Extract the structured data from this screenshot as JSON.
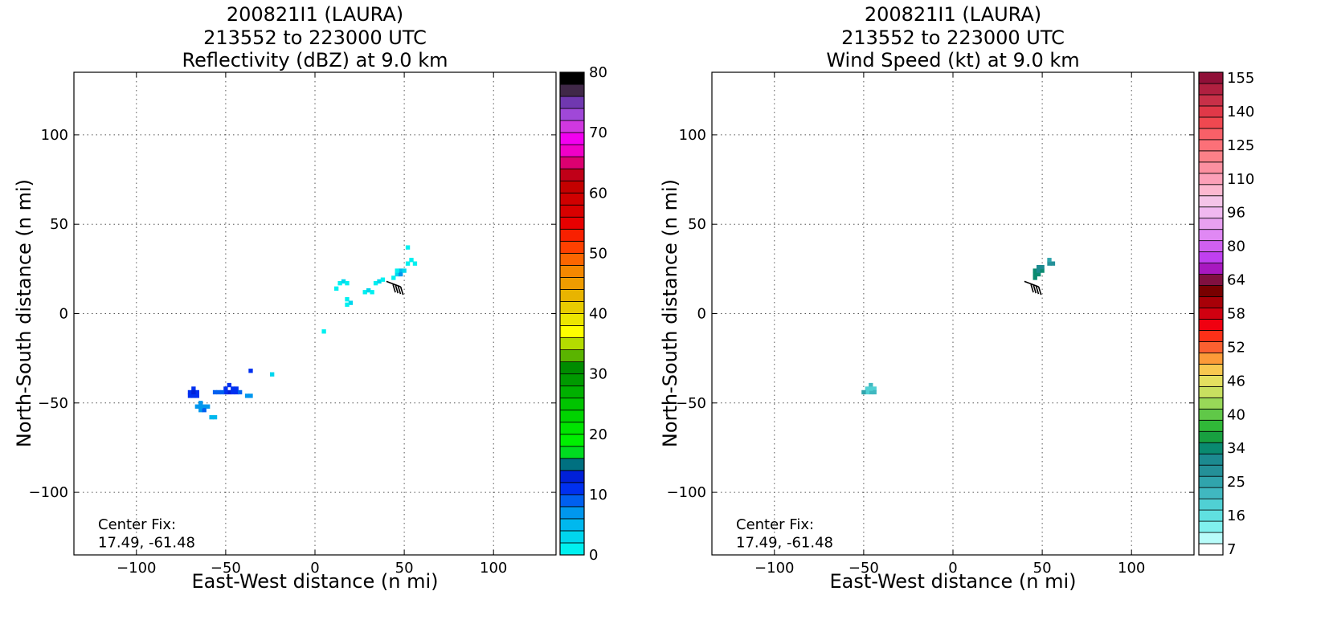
{
  "chart_data": [
    {
      "type": "heatmap",
      "title_lines": [
        "200821I1 (LAURA)",
        "213552 to 223000 UTC",
        "Reflectivity (dBZ) at 9.0 km"
      ],
      "xlabel": "East-West distance (n mi)",
      "ylabel": "North-South distance (n mi)",
      "xlim": [
        -135,
        135
      ],
      "ylim": [
        -135,
        135
      ],
      "xticks": [
        -100,
        -50,
        0,
        50,
        100
      ],
      "yticks": [
        -100,
        -50,
        0,
        50,
        100
      ],
      "xtick_labels": [
        "−100",
        "−50",
        "0",
        "50",
        "100"
      ],
      "ytick_labels": [
        "−100",
        "−50",
        "0",
        "50",
        "100"
      ],
      "grid": true,
      "annotation": {
        "line1": "Center Fix:",
        "line2": "17.49, -61.48"
      },
      "colorbar": {
        "min": 0,
        "max": 80,
        "step": 2.5,
        "ticks": [
          0,
          10,
          20,
          30,
          40,
          50,
          60,
          70,
          80
        ],
        "tick_labels": [
          "0",
          "10",
          "20",
          "30",
          "40",
          "50",
          "60",
          "70",
          "80"
        ],
        "colors": [
          "#00f0f0",
          "#00d6ee",
          "#00b8ee",
          "#0097ee",
          "#0060f0",
          "#0030f0",
          "#0020d8",
          "#007080",
          "#00dc20",
          "#00f000",
          "#00e400",
          "#00d400",
          "#00c400",
          "#00b000",
          "#009a00",
          "#008c00",
          "#5ab400",
          "#b4dc00",
          "#ffff00",
          "#ece600",
          "#e8cc00",
          "#e8b400",
          "#ef9c00",
          "#f48800",
          "#fc6600",
          "#ff4000",
          "#f82000",
          "#e80000",
          "#d80000",
          "#d00000",
          "#c40000",
          "#c00018",
          "#dc0070",
          "#f000c8",
          "#f200f0",
          "#d038e0",
          "#a048d8",
          "#7038b0",
          "#402848",
          "#000000"
        ]
      },
      "points": [
        [
          -68,
          -42
        ],
        [
          -70,
          -44
        ],
        [
          -68,
          -46
        ],
        [
          -66,
          -44
        ],
        [
          -66,
          -46
        ],
        [
          -70,
          -46
        ],
        [
          -68,
          -44
        ],
        [
          -64,
          -50
        ],
        [
          -62,
          -52
        ],
        [
          -64,
          -54
        ],
        [
          -62,
          -54
        ],
        [
          -66,
          -52
        ],
        [
          -60,
          -52
        ],
        [
          -64,
          -52
        ],
        [
          -50,
          -42
        ],
        [
          -48,
          -40
        ],
        [
          -46,
          -42
        ],
        [
          -44,
          -44
        ],
        [
          -48,
          -44
        ],
        [
          -46,
          -44
        ],
        [
          -50,
          -44
        ],
        [
          -52,
          -44
        ],
        [
          -44,
          -42
        ],
        [
          -42,
          -44
        ],
        [
          -54,
          -44
        ],
        [
          -56,
          -44
        ],
        [
          -36,
          -32
        ],
        [
          -38,
          -46
        ],
        [
          -36,
          -46
        ],
        [
          -58,
          -58
        ],
        [
          -56,
          -58
        ],
        [
          -24,
          -34
        ],
        [
          5,
          -10
        ],
        [
          12,
          14
        ],
        [
          14,
          17
        ],
        [
          16,
          18
        ],
        [
          18,
          17
        ],
        [
          18,
          8
        ],
        [
          20,
          6
        ],
        [
          18,
          5
        ],
        [
          28,
          12
        ],
        [
          30,
          13
        ],
        [
          32,
          12
        ],
        [
          34,
          17
        ],
        [
          36,
          18
        ],
        [
          38,
          19
        ],
        [
          44,
          20
        ],
        [
          46,
          22
        ],
        [
          48,
          24
        ],
        [
          48,
          22
        ],
        [
          50,
          24
        ],
        [
          46,
          24
        ],
        [
          52,
          28
        ],
        [
          54,
          30
        ],
        [
          56,
          28
        ],
        [
          52,
          37
        ]
      ],
      "point_levels": [
        5,
        5,
        5,
        5,
        5,
        5,
        6,
        3,
        3,
        3,
        4,
        3,
        3,
        3,
        5,
        5,
        5,
        5,
        6,
        5,
        5,
        4,
        5,
        4,
        4,
        4,
        5,
        3,
        3,
        2,
        2,
        1,
        0,
        0,
        0,
        1,
        0,
        0,
        1,
        0,
        0,
        1,
        0,
        0,
        1,
        0,
        0,
        1,
        2,
        3,
        1,
        0,
        0,
        0,
        0,
        0
      ]
    },
    {
      "type": "heatmap",
      "title_lines": [
        "200821I1 (LAURA)",
        "213552 to 223000 UTC",
        "Wind Speed (kt) at 9.0 km"
      ],
      "xlabel": "East-West distance (n mi)",
      "ylabel": "North-South distance (n mi)",
      "xlim": [
        -135,
        135
      ],
      "ylim": [
        -135,
        135
      ],
      "xticks": [
        -100,
        -50,
        0,
        50,
        100
      ],
      "yticks": [
        -100,
        -50,
        0,
        50,
        100
      ],
      "xtick_labels": [
        "−100",
        "−50",
        "0",
        "50",
        "100"
      ],
      "ytick_labels": [
        "−100",
        "−50",
        "0",
        "50",
        "100"
      ],
      "grid": true,
      "annotation": {
        "line1": "Center Fix:",
        "line2": "17.49, -61.48"
      },
      "colorbar": {
        "levels": 43,
        "tick_labels": [
          "7",
          "16",
          "25",
          "34",
          "40",
          "46",
          "52",
          "58",
          "64",
          "80",
          "96",
          "110",
          "125",
          "140",
          "155"
        ],
        "tick_level_index": [
          0.5,
          3.5,
          6.5,
          9.5,
          12.5,
          15.5,
          18.5,
          21.5,
          24.5,
          27.5,
          30.5,
          33.5,
          36.5,
          39.5,
          42.5
        ],
        "colors": [
          "#ffffff",
          "#b8fcfa",
          "#80f0ee",
          "#60e0e0",
          "#50d0d4",
          "#40b8c0",
          "#30a4ac",
          "#249098",
          "#1c8a90",
          "#0a8a70",
          "#18a040",
          "#30b838",
          "#60c848",
          "#98d858",
          "#c8e060",
          "#e4e060",
          "#f8c850",
          "#fc9a38",
          "#fc6030",
          "#fc3018",
          "#f00010",
          "#d00010",
          "#a80008",
          "#780000",
          "#801040",
          "#a818c0",
          "#c040f0",
          "#d060f0",
          "#e088f4",
          "#e8a0f0",
          "#f0b8f0",
          "#f4c4e8",
          "#fcb8d0",
          "#fca0b8",
          "#fc90a0",
          "#fc8088",
          "#fc7078",
          "#f86068",
          "#f04850",
          "#e03848",
          "#c83048",
          "#b02040",
          "#901038"
        ]
      },
      "points": [
        [
          -48,
          -42
        ],
        [
          -46,
          -40
        ],
        [
          -44,
          -42
        ],
        [
          -46,
          -44
        ],
        [
          -48,
          -44
        ],
        [
          -44,
          -44
        ],
        [
          -50,
          -44
        ],
        [
          -46,
          -42
        ],
        [
          46,
          24
        ],
        [
          48,
          22
        ],
        [
          46,
          22
        ],
        [
          48,
          24
        ],
        [
          50,
          24
        ],
        [
          50,
          26
        ],
        [
          48,
          26
        ],
        [
          46,
          20
        ],
        [
          54,
          28
        ],
        [
          56,
          28
        ],
        [
          54,
          30
        ]
      ],
      "point_levels": [
        4,
        5,
        4,
        5,
        4,
        5,
        6,
        4,
        9,
        9,
        9,
        8,
        9,
        8,
        8,
        9,
        7,
        7,
        6
      ]
    }
  ]
}
